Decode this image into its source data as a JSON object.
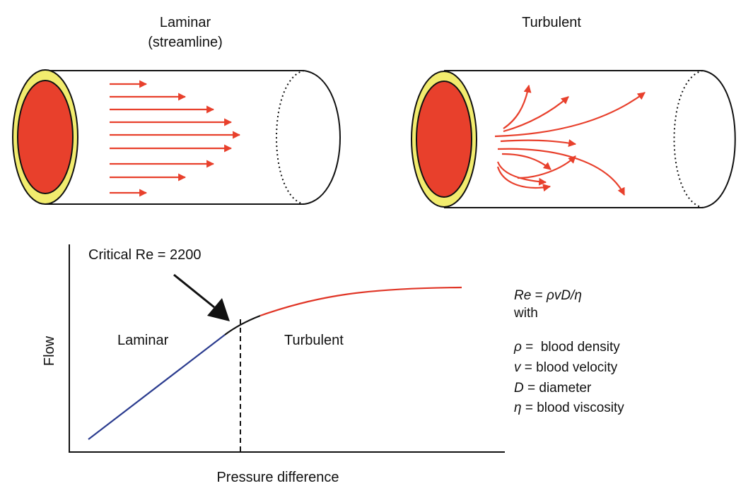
{
  "top": {
    "laminar_title_line1": "Laminar",
    "laminar_title_line2": "(streamline)",
    "turbulent_title": "Turbulent"
  },
  "graph": {
    "critical_label": "Critical Re = 2200",
    "region_laminar": "Laminar",
    "region_turbulent": "Turbulent",
    "y_axis_label": "Flow",
    "x_axis_label": "Pressure difference"
  },
  "legend": {
    "formula_lhs": "Re",
    "formula_eq": " = ",
    "formula_rhs": "ρvD/η",
    "with": "with",
    "items": [
      {
        "symbol": "ρ",
        "sep": " =  ",
        "text": "blood density"
      },
      {
        "symbol": "v",
        "sep": " = ",
        "text": "blood velocity"
      },
      {
        "symbol": "D",
        "sep": " = ",
        "text": "diameter"
      },
      {
        "symbol": "η",
        "sep": " = ",
        "text": "blood viscosity"
      }
    ]
  },
  "colors": {
    "vessel_lumen": "#e8402c",
    "vessel_wall": "#f2ec6e",
    "flow_arrow": "#e8402c",
    "laminar_curve": "#2b3c8f",
    "turbulent_curve": "#e03526",
    "outline": "#111111"
  }
}
